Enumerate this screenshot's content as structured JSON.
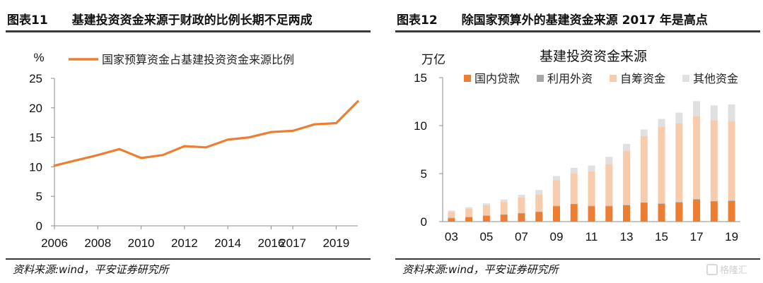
{
  "left_panel": {
    "fig_number": "图表11",
    "fig_title": "基建投资资金来源于财政的比例长期不足两成",
    "source": "资料来源:wind，平安证券研究所"
  },
  "right_panel": {
    "fig_number": "图表12",
    "fig_title": "除国家预算外的基建资金来源 2017 年是高点",
    "source": "资料来源:wind，平安证券研究所"
  },
  "watermark": "格隆汇",
  "chart_data": [
    {
      "type": "line",
      "ylabel": "%",
      "ylim": [
        0,
        25
      ],
      "yticks": [
        "0",
        "5",
        "10",
        "15",
        "20",
        "25"
      ],
      "xlim": [
        2006,
        2020
      ],
      "xticks": [
        "2006",
        "2008",
        "2010",
        "2012",
        "2014",
        "2016",
        "2017",
        "2019"
      ],
      "color": "#ED7D31",
      "series": [
        {
          "name": "国家预算资金占基建投资资金来源比例",
          "x": [
            2006,
            2007,
            2008,
            2009,
            2010,
            2011,
            2012,
            2013,
            2014,
            2015,
            2016,
            2017,
            2018,
            2019,
            2020
          ],
          "values": [
            10.2,
            11.1,
            12.0,
            13.0,
            11.5,
            12.0,
            13.5,
            13.3,
            14.6,
            15.0,
            15.9,
            16.1,
            17.2,
            17.4,
            21.1
          ]
        }
      ],
      "grid": false,
      "legend_position": "top"
    },
    {
      "type": "bar",
      "stacked": true,
      "title": "基建投资资金来源",
      "ylabel": "万亿",
      "ylim": [
        0,
        15
      ],
      "yticks": [
        "0",
        "5",
        "10",
        "15"
      ],
      "categories": [
        "03",
        "04",
        "05",
        "06",
        "07",
        "08",
        "09",
        "10",
        "11",
        "12",
        "13",
        "14",
        "15",
        "16",
        "17",
        "18",
        "19"
      ],
      "category_labels": [
        "03",
        "",
        "05",
        "",
        "07",
        "",
        "09",
        "",
        "11",
        "",
        "13",
        "",
        "15",
        "",
        "17",
        "",
        "19"
      ],
      "series": [
        {
          "name": "国内贷款",
          "color": "#ED7D31",
          "values": [
            0.35,
            0.45,
            0.6,
            0.7,
            0.85,
            1.0,
            1.6,
            1.8,
            1.6,
            1.6,
            1.7,
            1.95,
            1.85,
            2.0,
            2.3,
            2.1,
            2.15
          ]
        },
        {
          "name": "利用外资",
          "color": "#A6A6A6",
          "values": [
            0.05,
            0.05,
            0.05,
            0.05,
            0.05,
            0.05,
            0.05,
            0.05,
            0.05,
            0.05,
            0.05,
            0.05,
            0.05,
            0.05,
            0.05,
            0.05,
            0.05
          ]
        },
        {
          "name": "自筹资金",
          "color": "#F8CBAD",
          "values": [
            0.6,
            0.85,
            1.05,
            1.3,
            1.6,
            1.8,
            2.65,
            3.2,
            3.6,
            4.35,
            5.6,
            6.9,
            8.0,
            8.2,
            8.65,
            8.4,
            8.3
          ]
        },
        {
          "name": "其他资金",
          "color": "#E0E0E0",
          "values": [
            0.15,
            0.15,
            0.2,
            0.25,
            0.3,
            0.45,
            0.45,
            0.55,
            0.6,
            0.75,
            0.75,
            0.7,
            0.8,
            1.1,
            1.55,
            1.55,
            1.7
          ]
        }
      ],
      "grid": false,
      "legend_position": "top"
    }
  ]
}
